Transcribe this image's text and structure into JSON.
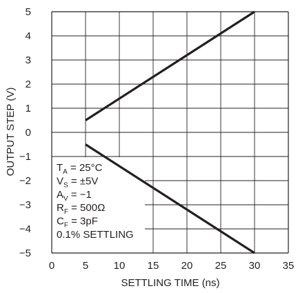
{
  "chart_data": {
    "type": "line",
    "title": "",
    "xlabel": "SETTLING TIME (ns)",
    "ylabel": "OUTPUT STEP (V)",
    "xlim": [
      0,
      35
    ],
    "ylim": [
      -5,
      5
    ],
    "x_ticks": [
      "0",
      "5",
      "10",
      "15",
      "20",
      "25",
      "30",
      "35"
    ],
    "y_ticks": [
      "5",
      "4",
      "3",
      "2",
      "1",
      "0",
      "−1",
      "−2",
      "−3",
      "−4",
      "−5"
    ],
    "grid": true,
    "series": [
      {
        "points": [
          [
            5,
            0.5
          ],
          [
            30,
            5
          ]
        ]
      },
      {
        "points": [
          [
            5,
            -0.5
          ],
          [
            30,
            -5
          ]
        ]
      }
    ],
    "line_color": "#231f20",
    "annotations": [
      {
        "main": "T",
        "sub": "A",
        "rest": " = 25°C"
      },
      {
        "main": "V",
        "sub": "S",
        "rest": " = ±5V"
      },
      {
        "main": "A",
        "sub": "V",
        "rest": " = −1"
      },
      {
        "main": "R",
        "sub": "F",
        "rest": " = 500Ω"
      },
      {
        "main": "C",
        "sub": "F",
        "rest": " = 3pF"
      },
      {
        "main": "0.1% SETTLING",
        "sub": "",
        "rest": ""
      }
    ]
  }
}
